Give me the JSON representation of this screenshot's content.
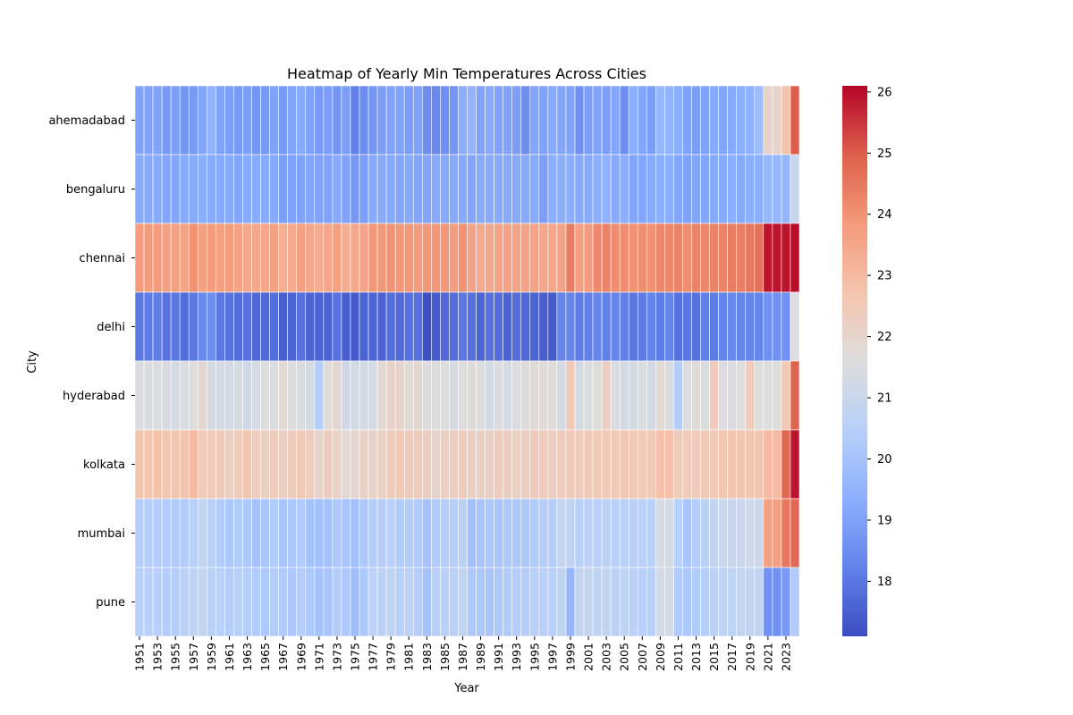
{
  "chart_data": {
    "type": "heatmap",
    "title": "Heatmap of Yearly Min Temperatures Across Cities",
    "xlabel": "Year",
    "ylabel": "City",
    "colormap": "coolwarm",
    "vmin": 17.1,
    "vmax": 26.1,
    "colorbar_ticks": [
      18,
      19,
      20,
      21,
      22,
      23,
      24,
      25,
      26
    ],
    "x_years": [
      1951,
      1952,
      1953,
      1954,
      1955,
      1956,
      1957,
      1958,
      1959,
      1960,
      1961,
      1962,
      1963,
      1964,
      1965,
      1966,
      1967,
      1968,
      1969,
      1970,
      1971,
      1972,
      1973,
      1974,
      1975,
      1976,
      1977,
      1978,
      1979,
      1980,
      1981,
      1982,
      1983,
      1984,
      1985,
      1986,
      1987,
      1988,
      1989,
      1990,
      1991,
      1992,
      1993,
      1994,
      1995,
      1996,
      1997,
      1998,
      1999,
      2000,
      2001,
      2002,
      2003,
      2004,
      2005,
      2006,
      2007,
      2008,
      2009,
      2010,
      2011,
      2012,
      2013,
      2014,
      2015,
      2016,
      2017,
      2018,
      2019,
      2020,
      2021,
      2022,
      2023,
      2024
    ],
    "x_tick_labels": [
      "1951",
      "1953",
      "1955",
      "1957",
      "1959",
      "1961",
      "1963",
      "1965",
      "1967",
      "1969",
      "1971",
      "1973",
      "1975",
      "1977",
      "1979",
      "1981",
      "1983",
      "1985",
      "1987",
      "1989",
      "1991",
      "1993",
      "1995",
      "1997",
      "1999",
      "2001",
      "2003",
      "2005",
      "2007",
      "2009",
      "2011",
      "2013",
      "2015",
      "2017",
      "2019",
      "2021",
      "2023"
    ],
    "cities": [
      "ahemadabad",
      "bengaluru",
      "chennai",
      "delhi",
      "hyderabad",
      "kolkata",
      "mumbai",
      "pune"
    ],
    "values": [
      [
        19.0,
        19.0,
        19.0,
        18.8,
        18.9,
        18.7,
        18.8,
        19.1,
        19.5,
        19.0,
        18.9,
        18.8,
        18.9,
        18.7,
        18.8,
        19.0,
        18.8,
        19.0,
        19.2,
        19.0,
        18.8,
        18.9,
        18.7,
        18.9,
        18.2,
        18.5,
        18.7,
        18.9,
        19.0,
        19.0,
        18.9,
        19.0,
        18.5,
        18.4,
        18.6,
        18.7,
        19.3,
        19.5,
        19.0,
        19.2,
        19.0,
        19.0,
        18.9,
        18.5,
        19.1,
        19.0,
        19.2,
        19.1,
        19.0,
        18.6,
        18.9,
        19.0,
        18.9,
        19.1,
        18.5,
        19.3,
        19.1,
        18.9,
        19.6,
        19.5,
        19.3,
        19.0,
        18.9,
        19.0,
        19.2,
        19.1,
        19.2,
        19.3,
        19.4,
        19.8,
        22.0,
        22.0,
        22.7,
        25.0
      ],
      [
        19.2,
        19.2,
        19.2,
        19.1,
        19.1,
        19.2,
        19.2,
        19.3,
        19.2,
        19.2,
        19.2,
        19.1,
        19.2,
        19.2,
        19.2,
        19.2,
        18.9,
        19.0,
        19.0,
        19.1,
        19.0,
        19.0,
        19.2,
        19.0,
        18.8,
        18.9,
        19.2,
        19.2,
        19.2,
        19.1,
        19.2,
        19.1,
        19.1,
        19.2,
        19.2,
        19.2,
        19.2,
        19.1,
        19.2,
        19.2,
        19.2,
        19.2,
        19.2,
        19.2,
        19.2,
        18.9,
        19.3,
        19.3,
        19.3,
        19.2,
        19.2,
        19.3,
        19.4,
        19.2,
        19.3,
        19.1,
        19.1,
        19.2,
        19.3,
        19.3,
        19.1,
        19.0,
        19.1,
        19.1,
        19.2,
        19.2,
        19.3,
        19.2,
        19.3,
        19.3,
        19.6,
        19.6,
        19.6,
        21.0
      ],
      [
        23.8,
        23.8,
        23.8,
        23.7,
        23.7,
        23.6,
        24.0,
        23.7,
        23.8,
        23.7,
        23.8,
        23.6,
        23.5,
        23.5,
        23.5,
        23.7,
        23.3,
        23.4,
        23.7,
        23.5,
        23.4,
        23.5,
        23.7,
        23.3,
        23.5,
        23.6,
        23.9,
        23.9,
        24.0,
        23.9,
        23.9,
        23.8,
        23.9,
        23.9,
        23.9,
        23.8,
        24.0,
        23.6,
        23.4,
        23.5,
        23.6,
        23.6,
        23.6,
        23.6,
        23.6,
        23.5,
        23.5,
        23.6,
        24.4,
        23.7,
        23.8,
        24.2,
        24.3,
        24.1,
        24.1,
        24.0,
        24.1,
        24.0,
        24.2,
        24.2,
        24.3,
        24.1,
        24.3,
        24.2,
        24.3,
        24.3,
        24.4,
        24.4,
        24.5,
        24.6,
        25.9,
        25.9,
        25.9,
        26.0
      ],
      [
        18.0,
        18.1,
        18.1,
        17.9,
        18.0,
        17.8,
        18.0,
        18.4,
        18.5,
        18.0,
        17.9,
        17.8,
        17.9,
        17.7,
        17.7,
        17.8,
        17.5,
        17.6,
        17.9,
        17.6,
        17.6,
        17.6,
        17.9,
        17.5,
        17.4,
        17.6,
        17.6,
        17.6,
        17.8,
        17.7,
        17.9,
        17.9,
        17.2,
        17.4,
        17.7,
        17.8,
        18.0,
        17.9,
        17.6,
        17.9,
        17.8,
        17.6,
        17.8,
        17.7,
        17.6,
        17.5,
        17.4,
        18.3,
        18.3,
        18.1,
        18.2,
        18.3,
        18.2,
        18.3,
        18.2,
        18.0,
        18.1,
        18.3,
        18.1,
        18.3,
        17.9,
        18.0,
        17.9,
        18.2,
        18.1,
        18.3,
        18.4,
        18.3,
        18.3,
        18.3,
        18.6,
        18.6,
        18.6,
        21.6
      ],
      [
        21.5,
        21.5,
        21.5,
        21.4,
        21.3,
        21.5,
        21.6,
        21.9,
        21.3,
        21.4,
        21.3,
        21.4,
        21.2,
        21.4,
        21.6,
        21.5,
        21.8,
        21.6,
        21.5,
        21.4,
        20.4,
        21.7,
        21.9,
        21.2,
        21.3,
        21.3,
        21.3,
        21.8,
        22.1,
        22.0,
        21.8,
        21.9,
        21.6,
        21.6,
        21.6,
        21.4,
        21.6,
        21.7,
        21.6,
        21.3,
        21.5,
        21.4,
        21.5,
        21.7,
        21.8,
        21.7,
        21.7,
        21.3,
        22.5,
        21.3,
        21.5,
        21.7,
        22.2,
        21.5,
        21.3,
        21.4,
        21.5,
        21.3,
        21.8,
        21.5,
        20.4,
        21.6,
        21.7,
        21.5,
        22.4,
        21.5,
        21.5,
        21.6,
        22.4,
        21.6,
        21.6,
        21.6,
        22.5,
        24.9
      ],
      [
        22.7,
        22.7,
        22.8,
        22.6,
        22.6,
        22.7,
        23.0,
        22.4,
        22.4,
        22.4,
        22.2,
        22.4,
        22.6,
        22.3,
        22.2,
        22.4,
        22.2,
        22.3,
        22.5,
        22.3,
        22.0,
        22.3,
        22.1,
        21.8,
        21.9,
        22.1,
        22.1,
        22.2,
        22.4,
        22.5,
        22.4,
        22.4,
        22.3,
        22.0,
        22.2,
        22.3,
        22.4,
        22.2,
        22.2,
        22.2,
        22.4,
        22.3,
        22.2,
        22.3,
        22.4,
        22.4,
        22.3,
        22.4,
        22.5,
        22.4,
        22.5,
        22.5,
        22.5,
        22.5,
        22.6,
        22.5,
        22.5,
        22.5,
        22.8,
        22.8,
        22.4,
        22.4,
        22.4,
        22.5,
        22.5,
        22.6,
        22.6,
        22.6,
        22.6,
        22.6,
        23.0,
        23.0,
        24.8,
        25.9
      ],
      [
        20.4,
        20.4,
        20.4,
        20.3,
        20.3,
        20.3,
        20.5,
        20.8,
        20.6,
        20.3,
        20.2,
        20.3,
        20.2,
        20.0,
        20.1,
        20.3,
        20.1,
        20.2,
        20.3,
        20.0,
        19.9,
        20.0,
        20.2,
        20.1,
        19.9,
        20.2,
        20.4,
        20.4,
        20.5,
        20.3,
        20.4,
        20.3,
        20.0,
        20.3,
        20.4,
        20.4,
        20.6,
        19.9,
        20.1,
        20.2,
        20.1,
        20.2,
        20.2,
        20.2,
        20.3,
        20.4,
        20.4,
        20.8,
        20.7,
        20.5,
        20.6,
        20.5,
        20.6,
        20.5,
        20.5,
        20.6,
        20.6,
        20.5,
        21.4,
        21.4,
        20.5,
        20.1,
        20.4,
        20.6,
        20.8,
        21.0,
        21.0,
        21.0,
        21.1,
        21.1,
        23.7,
        23.7,
        24.5,
        24.8
      ],
      [
        20.5,
        20.5,
        20.5,
        20.4,
        20.4,
        20.6,
        20.7,
        20.8,
        20.6,
        20.5,
        20.4,
        20.5,
        20.4,
        20.3,
        20.2,
        20.4,
        20.3,
        20.2,
        20.4,
        20.2,
        20.0,
        20.1,
        20.4,
        20.2,
        19.8,
        20.2,
        20.6,
        20.6,
        20.7,
        20.5,
        20.6,
        20.4,
        20.0,
        20.5,
        20.5,
        20.5,
        20.7,
        20.2,
        20.2,
        20.1,
        20.2,
        20.3,
        20.4,
        20.4,
        20.5,
        20.5,
        20.5,
        20.7,
        19.6,
        20.8,
        20.8,
        20.7,
        20.8,
        20.6,
        20.7,
        20.6,
        20.5,
        20.5,
        21.3,
        21.3,
        20.3,
        20.2,
        20.3,
        20.4,
        20.6,
        20.7,
        20.7,
        20.8,
        20.8,
        20.8,
        18.6,
        18.6,
        18.8,
        20.3
      ]
    ]
  }
}
